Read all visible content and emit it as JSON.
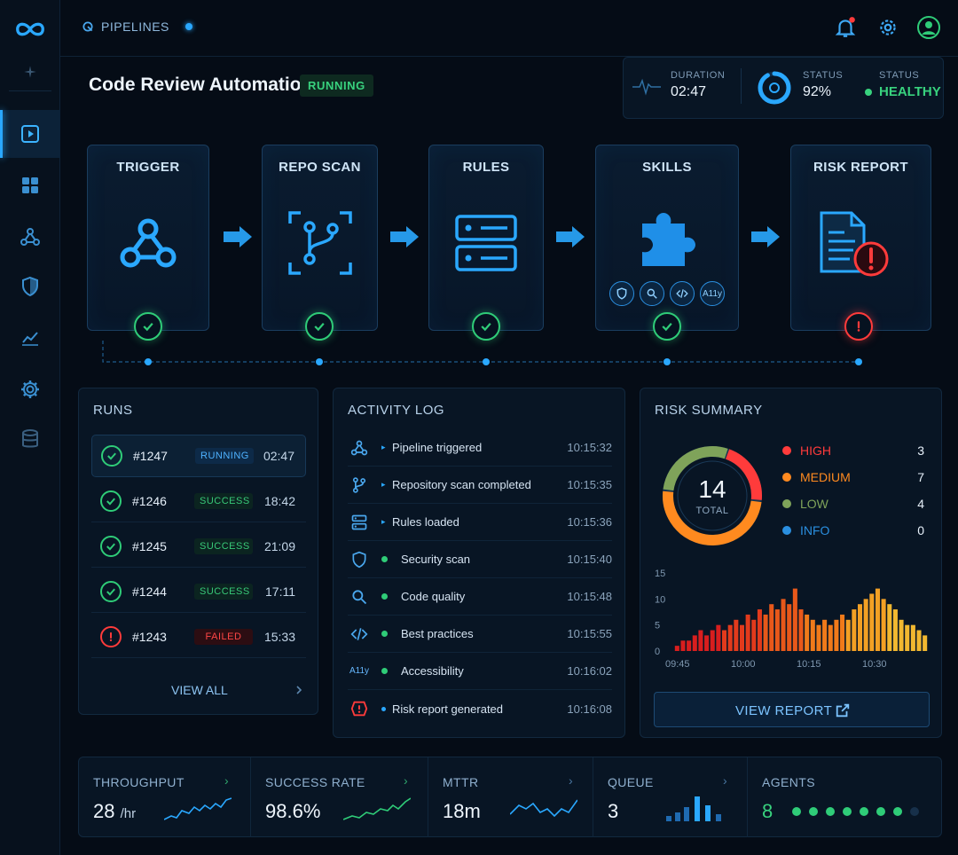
{
  "breadcrumb": {
    "label": "PIPELINES"
  },
  "header": {
    "title": "Code Review Automation",
    "status_badge": "RUNNING"
  },
  "stats": {
    "duration": {
      "label": "DURATION",
      "value": "02:47"
    },
    "progress": {
      "label": "STATUS",
      "value": "92%",
      "fraction": 0.92
    },
    "health": {
      "label": "STATUS",
      "value": "HEALTHY"
    }
  },
  "pipeline": {
    "stages": [
      {
        "title": "TRIGGER",
        "status": "success"
      },
      {
        "title": "REPO SCAN",
        "status": "success"
      },
      {
        "title": "RULES",
        "status": "success"
      },
      {
        "title": "SKILLS",
        "status": "success",
        "skills": [
          "shield",
          "search",
          "code",
          "A11y"
        ]
      },
      {
        "title": "RISK REPORT",
        "status": "error"
      }
    ]
  },
  "runs": {
    "title": "RUNS",
    "items": [
      {
        "id": "#1247",
        "status": "RUNNING",
        "time": "02:47"
      },
      {
        "id": "#1246",
        "status": "SUCCESS",
        "time": "18:42"
      },
      {
        "id": "#1245",
        "status": "SUCCESS",
        "time": "21:09"
      },
      {
        "id": "#1244",
        "status": "SUCCESS",
        "time": "17:11"
      },
      {
        "id": "#1243",
        "status": "FAILED",
        "time": "15:33"
      }
    ],
    "view_all": "VIEW ALL"
  },
  "activity_log": {
    "title": "ACTIVITY LOG",
    "items": [
      {
        "icon": "webhook-icon",
        "text": "Pipeline triggered",
        "time": "10:15:32"
      },
      {
        "icon": "git-branch-icon",
        "text": "Repository scan completed",
        "time": "10:15:35"
      },
      {
        "icon": "server-icon",
        "text": "Rules loaded",
        "time": "10:15:36"
      },
      {
        "icon": "shield-icon",
        "text": "Security scan",
        "time": "10:15:40"
      },
      {
        "icon": "search-icon",
        "text": "Code quality",
        "time": "10:15:48"
      },
      {
        "icon": "code-icon",
        "text": "Best practices",
        "time": "10:15:55"
      },
      {
        "icon": "a11y-icon",
        "label": "A11y",
        "text": "Accessibility",
        "time": "10:16:02"
      },
      {
        "icon": "alert-icon",
        "text": "Risk report generated",
        "time": "10:16:08"
      }
    ]
  },
  "risk_summary": {
    "title": "RISK SUMMARY",
    "total": "14",
    "total_label": "TOTAL",
    "legend": [
      {
        "label": "HIGH",
        "count": "3",
        "color": "#ff3b3b"
      },
      {
        "label": "MEDIUM",
        "count": "7",
        "color": "#ff8a1f"
      },
      {
        "label": "LOW",
        "count": "4",
        "color": "#7fa35a"
      },
      {
        "label": "INFO",
        "count": "0",
        "color": "#2a8fe0"
      }
    ],
    "view_report": "VIEW REPORT"
  },
  "chart_data": {
    "type": "bar",
    "y_ticks": [
      "15",
      "10",
      "5",
      "0"
    ],
    "ylim": [
      0,
      15
    ],
    "x_ticks": [
      "09:45",
      "10:00",
      "10:15",
      "10:30"
    ],
    "values": [
      1,
      2,
      2,
      3,
      4,
      3,
      4,
      5,
      4,
      5,
      6,
      5,
      7,
      6,
      8,
      7,
      9,
      8,
      10,
      9,
      12,
      8,
      7,
      6,
      5,
      6,
      5,
      6,
      7,
      6,
      8,
      9,
      10,
      11,
      12,
      10,
      9,
      8,
      6,
      5,
      5,
      4,
      3
    ],
    "colors": [
      "#d81e1e",
      "#e23a1c",
      "#e8581a",
      "#f07a1a",
      "#f3a024",
      "#f2b830"
    ]
  },
  "metrics": [
    {
      "label": "THROUGHPUT",
      "value": "28",
      "unit": "/hr"
    },
    {
      "label": "SUCCESS RATE",
      "value": "98.6%"
    },
    {
      "label": "MTTR",
      "value": "18m"
    },
    {
      "label": "QUEUE",
      "value": "3"
    },
    {
      "label": "AGENTS",
      "value": "8",
      "active": 7,
      "total": 8
    }
  ],
  "colors": {
    "accent": "#2aa8ff",
    "success": "#2fcc78",
    "error": "#ff3b3b",
    "warning": "#ff8a1f"
  }
}
